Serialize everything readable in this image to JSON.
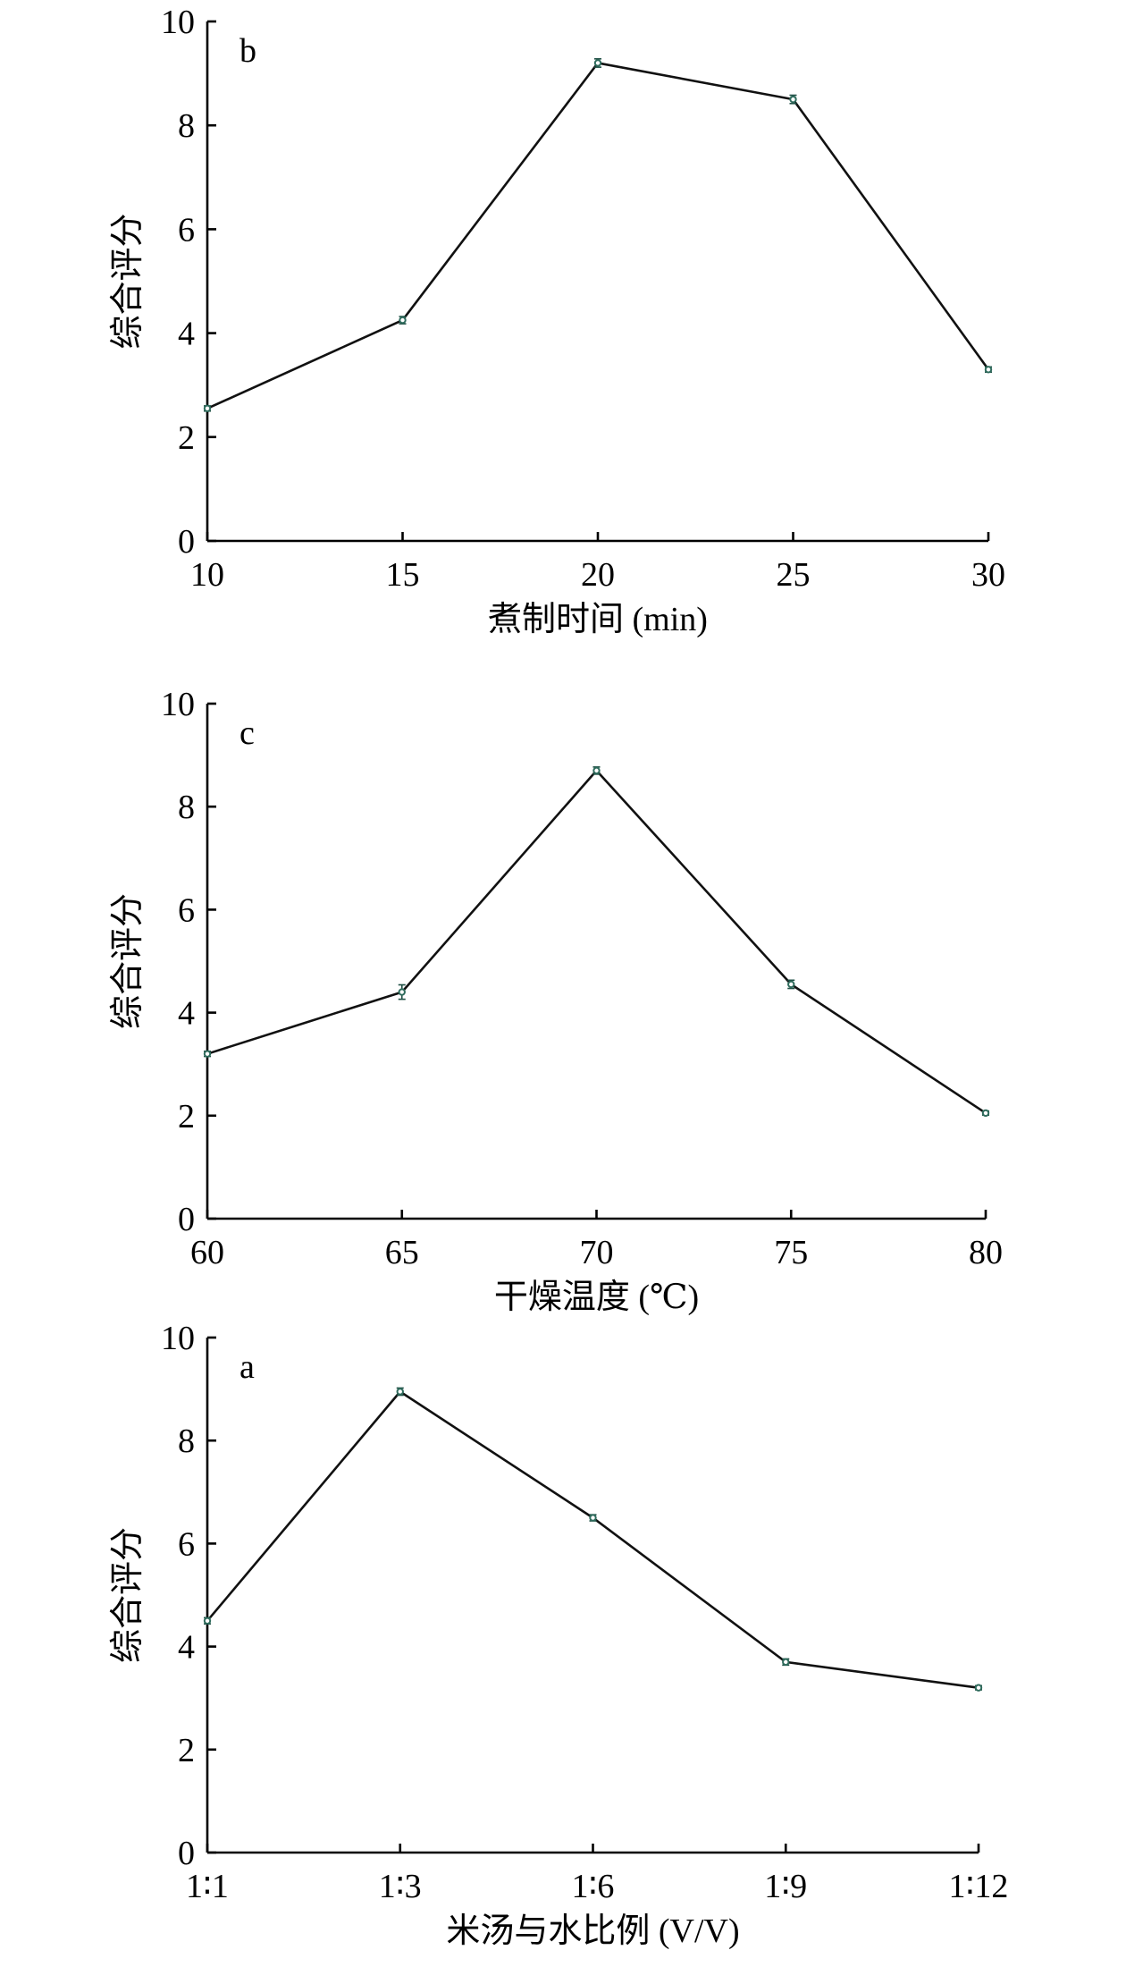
{
  "chart_data": [
    {
      "type": "line",
      "panel_label": "b",
      "x_tick_labels": [
        "10",
        "15",
        "20",
        "25",
        "30"
      ],
      "x": [
        10,
        15,
        20,
        25,
        30
      ],
      "values": [
        2.55,
        4.25,
        9.2,
        8.5,
        3.3
      ],
      "errors": [
        0.05,
        0.07,
        0.08,
        0.08,
        0.05
      ],
      "xlabel": "煮制时间 (min)",
      "ylabel": "综合评分",
      "ylim": [
        0,
        10
      ],
      "y_ticks": [
        "0",
        "2",
        "4",
        "6",
        "8",
        "10"
      ],
      "grid": false
    },
    {
      "type": "line",
      "panel_label": "c",
      "x_tick_labels": [
        "60",
        "65",
        "70",
        "75",
        "80"
      ],
      "x": [
        60,
        65,
        70,
        75,
        80
      ],
      "values": [
        3.2,
        4.4,
        8.7,
        4.55,
        2.05
      ],
      "errors": [
        0.05,
        0.14,
        0.07,
        0.08,
        0.04
      ],
      "xlabel": "干燥温度 (℃)",
      "ylabel": "综合评分",
      "ylim": [
        0,
        10
      ],
      "y_ticks": [
        "0",
        "2",
        "4",
        "6",
        "8",
        "10"
      ],
      "grid": false
    },
    {
      "type": "line",
      "panel_label": "a",
      "x_tick_labels": [
        "1∶1",
        "1∶3",
        "1∶6",
        "1∶9",
        "1∶12"
      ],
      "x": [
        "1∶1",
        "1∶3",
        "1∶6",
        "1∶9",
        "1∶12"
      ],
      "values": [
        4.5,
        8.95,
        6.5,
        3.7,
        3.2
      ],
      "errors": [
        0.06,
        0.07,
        0.06,
        0.06,
        0.04
      ],
      "xlabel": "米汤与水比例 (V/V)",
      "ylabel": "综合评分",
      "ylim": [
        0,
        10
      ],
      "y_ticks": [
        "0",
        "2",
        "4",
        "6",
        "8",
        "10"
      ],
      "grid": false
    }
  ]
}
